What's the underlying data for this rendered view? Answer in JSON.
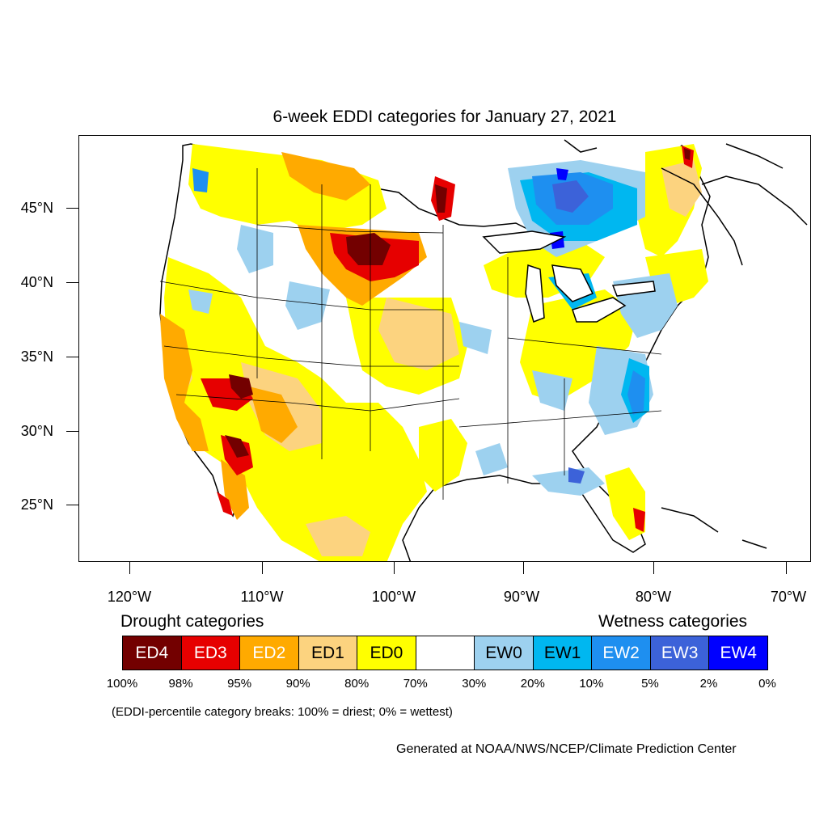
{
  "title": "6-week EDDI categories for January 27, 2021",
  "lat_labels": [
    "45°N",
    "40°N",
    "35°N",
    "30°N",
    "25°N"
  ],
  "lon_labels": [
    "120°W",
    "110°W",
    "100°W",
    "90°W",
    "80°W",
    "70°W"
  ],
  "legend": {
    "drought_heading": "Drought categories",
    "wetness_heading": "Wetness categories",
    "categories": [
      {
        "label": "ED4",
        "color": "#730000",
        "text_color": "#ffffff"
      },
      {
        "label": "ED3",
        "color": "#e60000",
        "text_color": "#ffffff"
      },
      {
        "label": "ED2",
        "color": "#ffaa00",
        "text_color": "#ffffff"
      },
      {
        "label": "ED1",
        "color": "#fcd37f",
        "text_color": "#000000"
      },
      {
        "label": "ED0",
        "color": "#ffff00",
        "text_color": "#000000"
      },
      {
        "label": "",
        "color": "#ffffff",
        "text_color": "#000000"
      },
      {
        "label": "EW0",
        "color": "#9dd1ef",
        "text_color": "#000000"
      },
      {
        "label": "EW1",
        "color": "#00b7f0",
        "text_color": "#000000"
      },
      {
        "label": "EW2",
        "color": "#1e8ff0",
        "text_color": "#ffffff"
      },
      {
        "label": "EW3",
        "color": "#3c62d9",
        "text_color": "#ffffff"
      },
      {
        "label": "EW4",
        "color": "#0000ff",
        "text_color": "#ffffff"
      }
    ],
    "breaks": [
      "100%",
      "98%",
      "95%",
      "90%",
      "80%",
      "70%",
      "30%",
      "20%",
      "10%",
      "5%",
      "2%",
      "0%"
    ]
  },
  "note": "(EDDI-percentile category breaks: 100% = driest; 0% = wettest)",
  "credit": "Generated at NOAA/NWS/NCEP/Climate Prediction Center"
}
